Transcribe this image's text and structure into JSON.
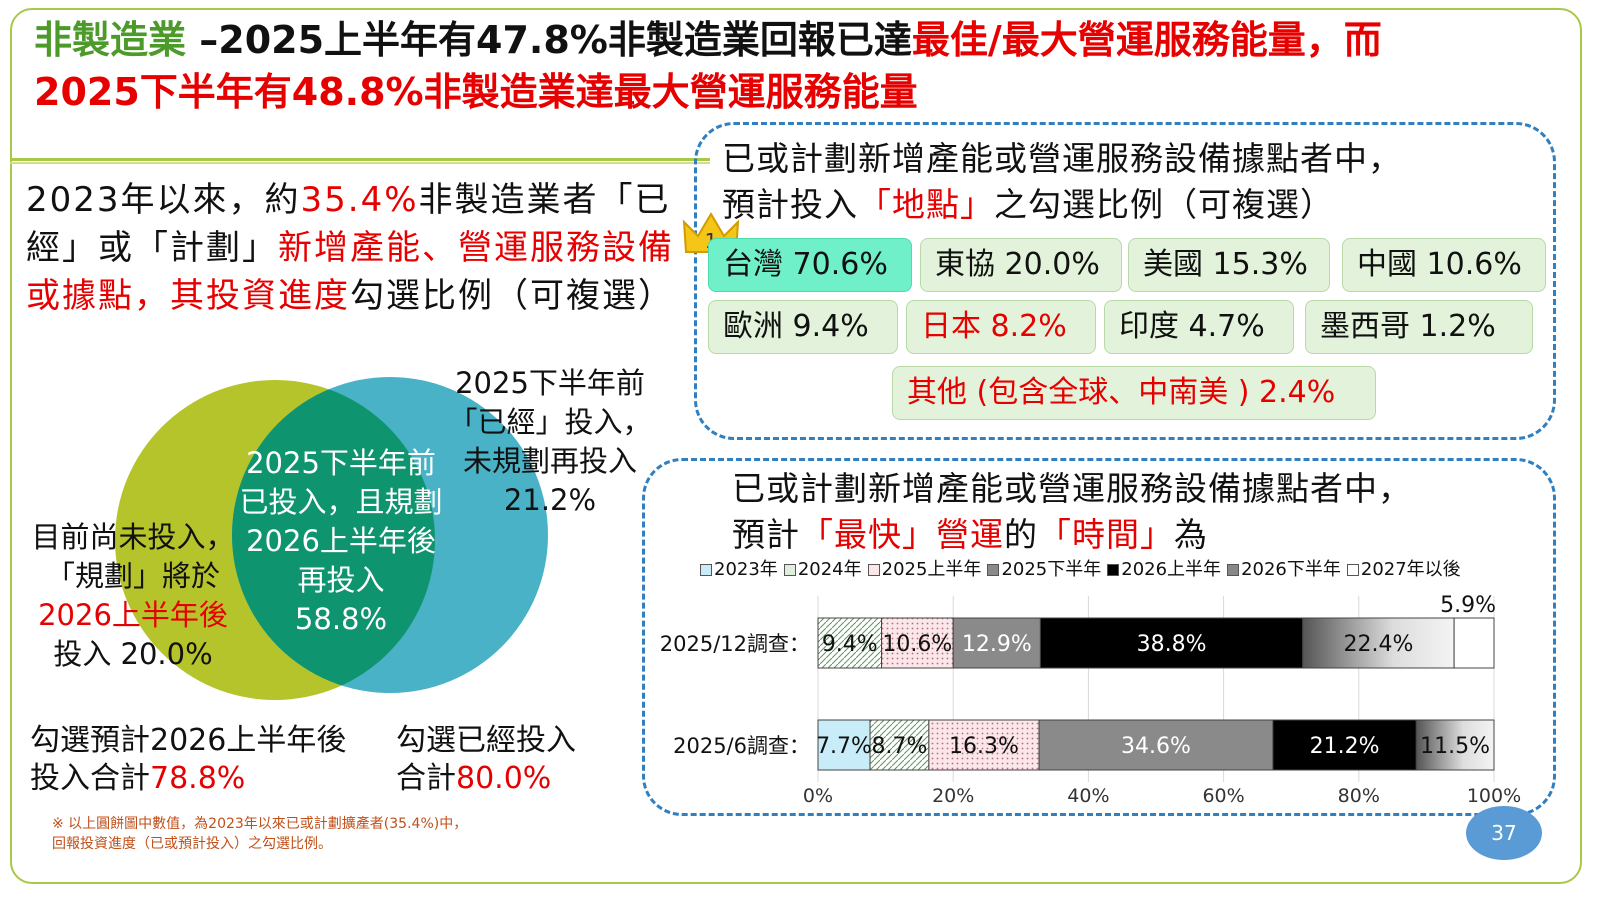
{
  "title": {
    "prefix": "非製造業",
    "dash": "–",
    "part1": "2025上半年有47.8%非製造業回報已達",
    "part2": "最佳/最大營運服務能量",
    "part3": "，而",
    "line2": "2025下半年有48.8%非製造業達最大營運服務能量"
  },
  "left_text": {
    "a": "2023年以來，約",
    "b": "35.4%",
    "c": "非製造業者「已經」或「計劃」",
    "d": "新增產能、營運服務設備或據點，其投資進度",
    "e": "勾選比例（可複選）"
  },
  "venn": {
    "left_label_1": "目前尚未投入，",
    "left_label_2": "「規劃」將於",
    "left_label_3": "2026上半年後",
    "left_label_4": "投入 20.0%",
    "center_1": "2025下半年前",
    "center_2": "已投入，且規劃",
    "center_3": "2026上半年後",
    "center_4": "再投入",
    "center_5": "58.8%",
    "right_1": "2025下半年前",
    "right_2": "「已經」投入，",
    "right_3": "未規劃再投入",
    "right_4": "21.2%",
    "left_color": "#b5c42a",
    "right_color": "#4ab2c6",
    "overlap_color": "#0f9470"
  },
  "bottom": {
    "left_a": "勾選預計2026上半年後",
    "left_b": "投入合計",
    "left_c": "78.8%",
    "right_a": "勾選已經投入",
    "right_b": "合計",
    "right_c": "80.0%"
  },
  "note": {
    "line1": "※ 以上圓餅圖中數值，為2023年以來已或計劃擴產者(35.4%)中，",
    "line2": "回報投資進度（已或預計投入）之勾選比例。"
  },
  "location_box": {
    "title_1": "已或計劃新增產能或營運服務設備據點者中，",
    "title_2a": "預計投入",
    "title_2b": "「地點」",
    "title_2c": "之勾選比例（可複選）",
    "crown_number": "1",
    "items": [
      {
        "label": "台灣 70.6%"
      },
      {
        "label": "東協 20.0%"
      },
      {
        "label": "美國 15.3%"
      },
      {
        "label": "中國 10.6%"
      },
      {
        "label": "歐洲  9.4%"
      },
      {
        "label": "日本 8.2%"
      },
      {
        "label": "印度 4.7%"
      },
      {
        "label": "墨西哥  1.2%"
      },
      {
        "label": "其他 (包含全球、中南美 ) 2.4%"
      }
    ]
  },
  "time_box": {
    "title_1": "已或計劃新增產能或營運服務設備據點者中，",
    "title_2a": "預計",
    "title_2b": "「最快」營運",
    "title_2c": "的",
    "title_2d": "「時間」",
    "title_2e": "為"
  },
  "chart_data": {
    "type": "bar",
    "orientation": "horizontal-stacked-100",
    "categories": [
      "2025/12調查：",
      "2025/6調查："
    ],
    "series": [
      {
        "name": "2023年",
        "values": [
          0,
          7.7
        ]
      },
      {
        "name": "2024年",
        "values": [
          9.4,
          8.7
        ]
      },
      {
        "name": "2025上半年",
        "values": [
          10.6,
          16.3
        ]
      },
      {
        "name": "2025下半年",
        "values": [
          12.9,
          34.6
        ]
      },
      {
        "name": "2026上半年",
        "values": [
          38.8,
          21.2
        ]
      },
      {
        "name": "2026下半年",
        "values": [
          22.4,
          11.5
        ]
      },
      {
        "name": "2027年以後",
        "values": [
          5.9,
          0
        ]
      }
    ],
    "data_labels": [
      [
        "",
        "9.4%",
        "10.6%",
        "12.9%",
        "38.8%",
        "22.4%",
        "5.9%"
      ],
      [
        "7.7%",
        "8.7%",
        "16.3%",
        "34.6%",
        "21.2%",
        "11.5%",
        ""
      ]
    ],
    "x_ticks": [
      "0%",
      "20%",
      "40%",
      "60%",
      "80%",
      "100%"
    ],
    "xlim": [
      0,
      100
    ],
    "legend_position": "top",
    "grid": true
  },
  "page_number": "37"
}
